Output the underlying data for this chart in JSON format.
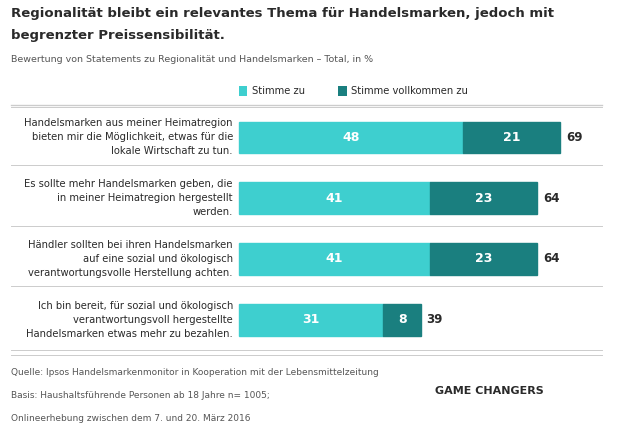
{
  "title_line1": "Regionalität bleibt ein relevantes Thema für Handelsmarken, jedoch mit",
  "title_line2": "begrenzter Preissensibilität.",
  "subtitle": "Bewertung von Statements zu Regionalität und Handelsmarken – Total, in %",
  "legend_label1": "Stimme zu",
  "legend_label2": "Stimme vollkommen zu",
  "color1": "#3ecfcf",
  "color2": "#1a7f7f",
  "categories": [
    "Handelsmarken aus meiner Heimatregion\nbieten mir die Möglichkeit, etwas für die\nlokale Wirtschaft zu tun.",
    "Es sollte mehr Handelsmarken geben, die\nin meiner Heimatregion hergestellt\nwerden.",
    "Händler sollten bei ihren Handelsmarken\nauf eine sozial und ökologisch\nverantwortungsvolle Herstellung achten.",
    "Ich bin bereit, für sozial und ökologisch\nverantwortungsvoll hergestellte\nHandelsmarken etwas mehr zu bezahlen."
  ],
  "values1": [
    48,
    41,
    41,
    31
  ],
  "values2": [
    21,
    23,
    23,
    8
  ],
  "totals": [
    69,
    64,
    64,
    39
  ],
  "footnote_line1": "Quelle: Ipsos Handelsmarkenmonitor in Kooperation mit der Lebensmittelzeitung",
  "footnote_line2": "Basis: Haushaltsführende Personen ab 18 Jahre n= 1005;",
  "footnote_line3": "Onlineerhebung zwischen dem 7. und 20. März 2016",
  "game_changers_text": "GAME CHANGERS",
  "background_color": "#ffffff",
  "text_color": "#2a2a2a",
  "light_text_color": "#555555",
  "separator_color": "#cccccc",
  "ipsos_bg": "#1a5faa",
  "bar_max": 70
}
